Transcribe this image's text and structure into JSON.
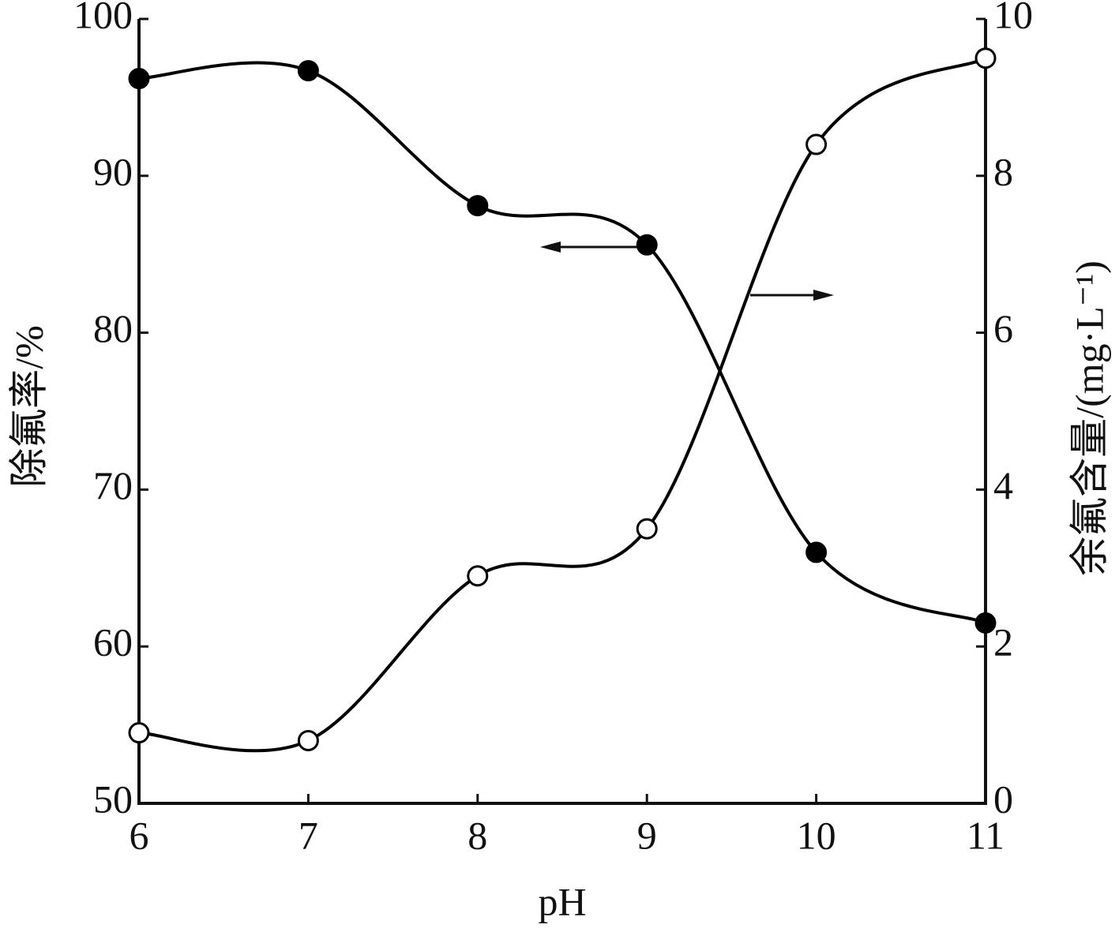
{
  "chart_data": {
    "type": "line",
    "xlabel": "pH",
    "ylabel": "除氟率/%",
    "y2label": "余氟含量/(mg·L⁻¹)",
    "x": [
      6,
      7,
      8,
      9,
      10,
      11
    ],
    "xlim": [
      6,
      11
    ],
    "xticks": [
      6,
      7,
      8,
      9,
      10,
      11
    ],
    "ylim": [
      50,
      100
    ],
    "yticks": [
      50,
      60,
      70,
      80,
      90,
      100
    ],
    "y2lim": [
      0,
      10
    ],
    "y2ticks": [
      0,
      2,
      4,
      6,
      8,
      10
    ],
    "series": [
      {
        "name": "除氟率",
        "color": "#000000",
        "filled": true,
        "values": [
          96.2,
          96.7,
          88.1,
          85.6,
          66.0,
          61.5
        ]
      },
      {
        "name": "余氟含量",
        "color": "#000000",
        "filled": false,
        "axis": "y2",
        "values": [
          0.9,
          0.8,
          2.9,
          3.5,
          8.4,
          9.5
        ]
      }
    ]
  }
}
